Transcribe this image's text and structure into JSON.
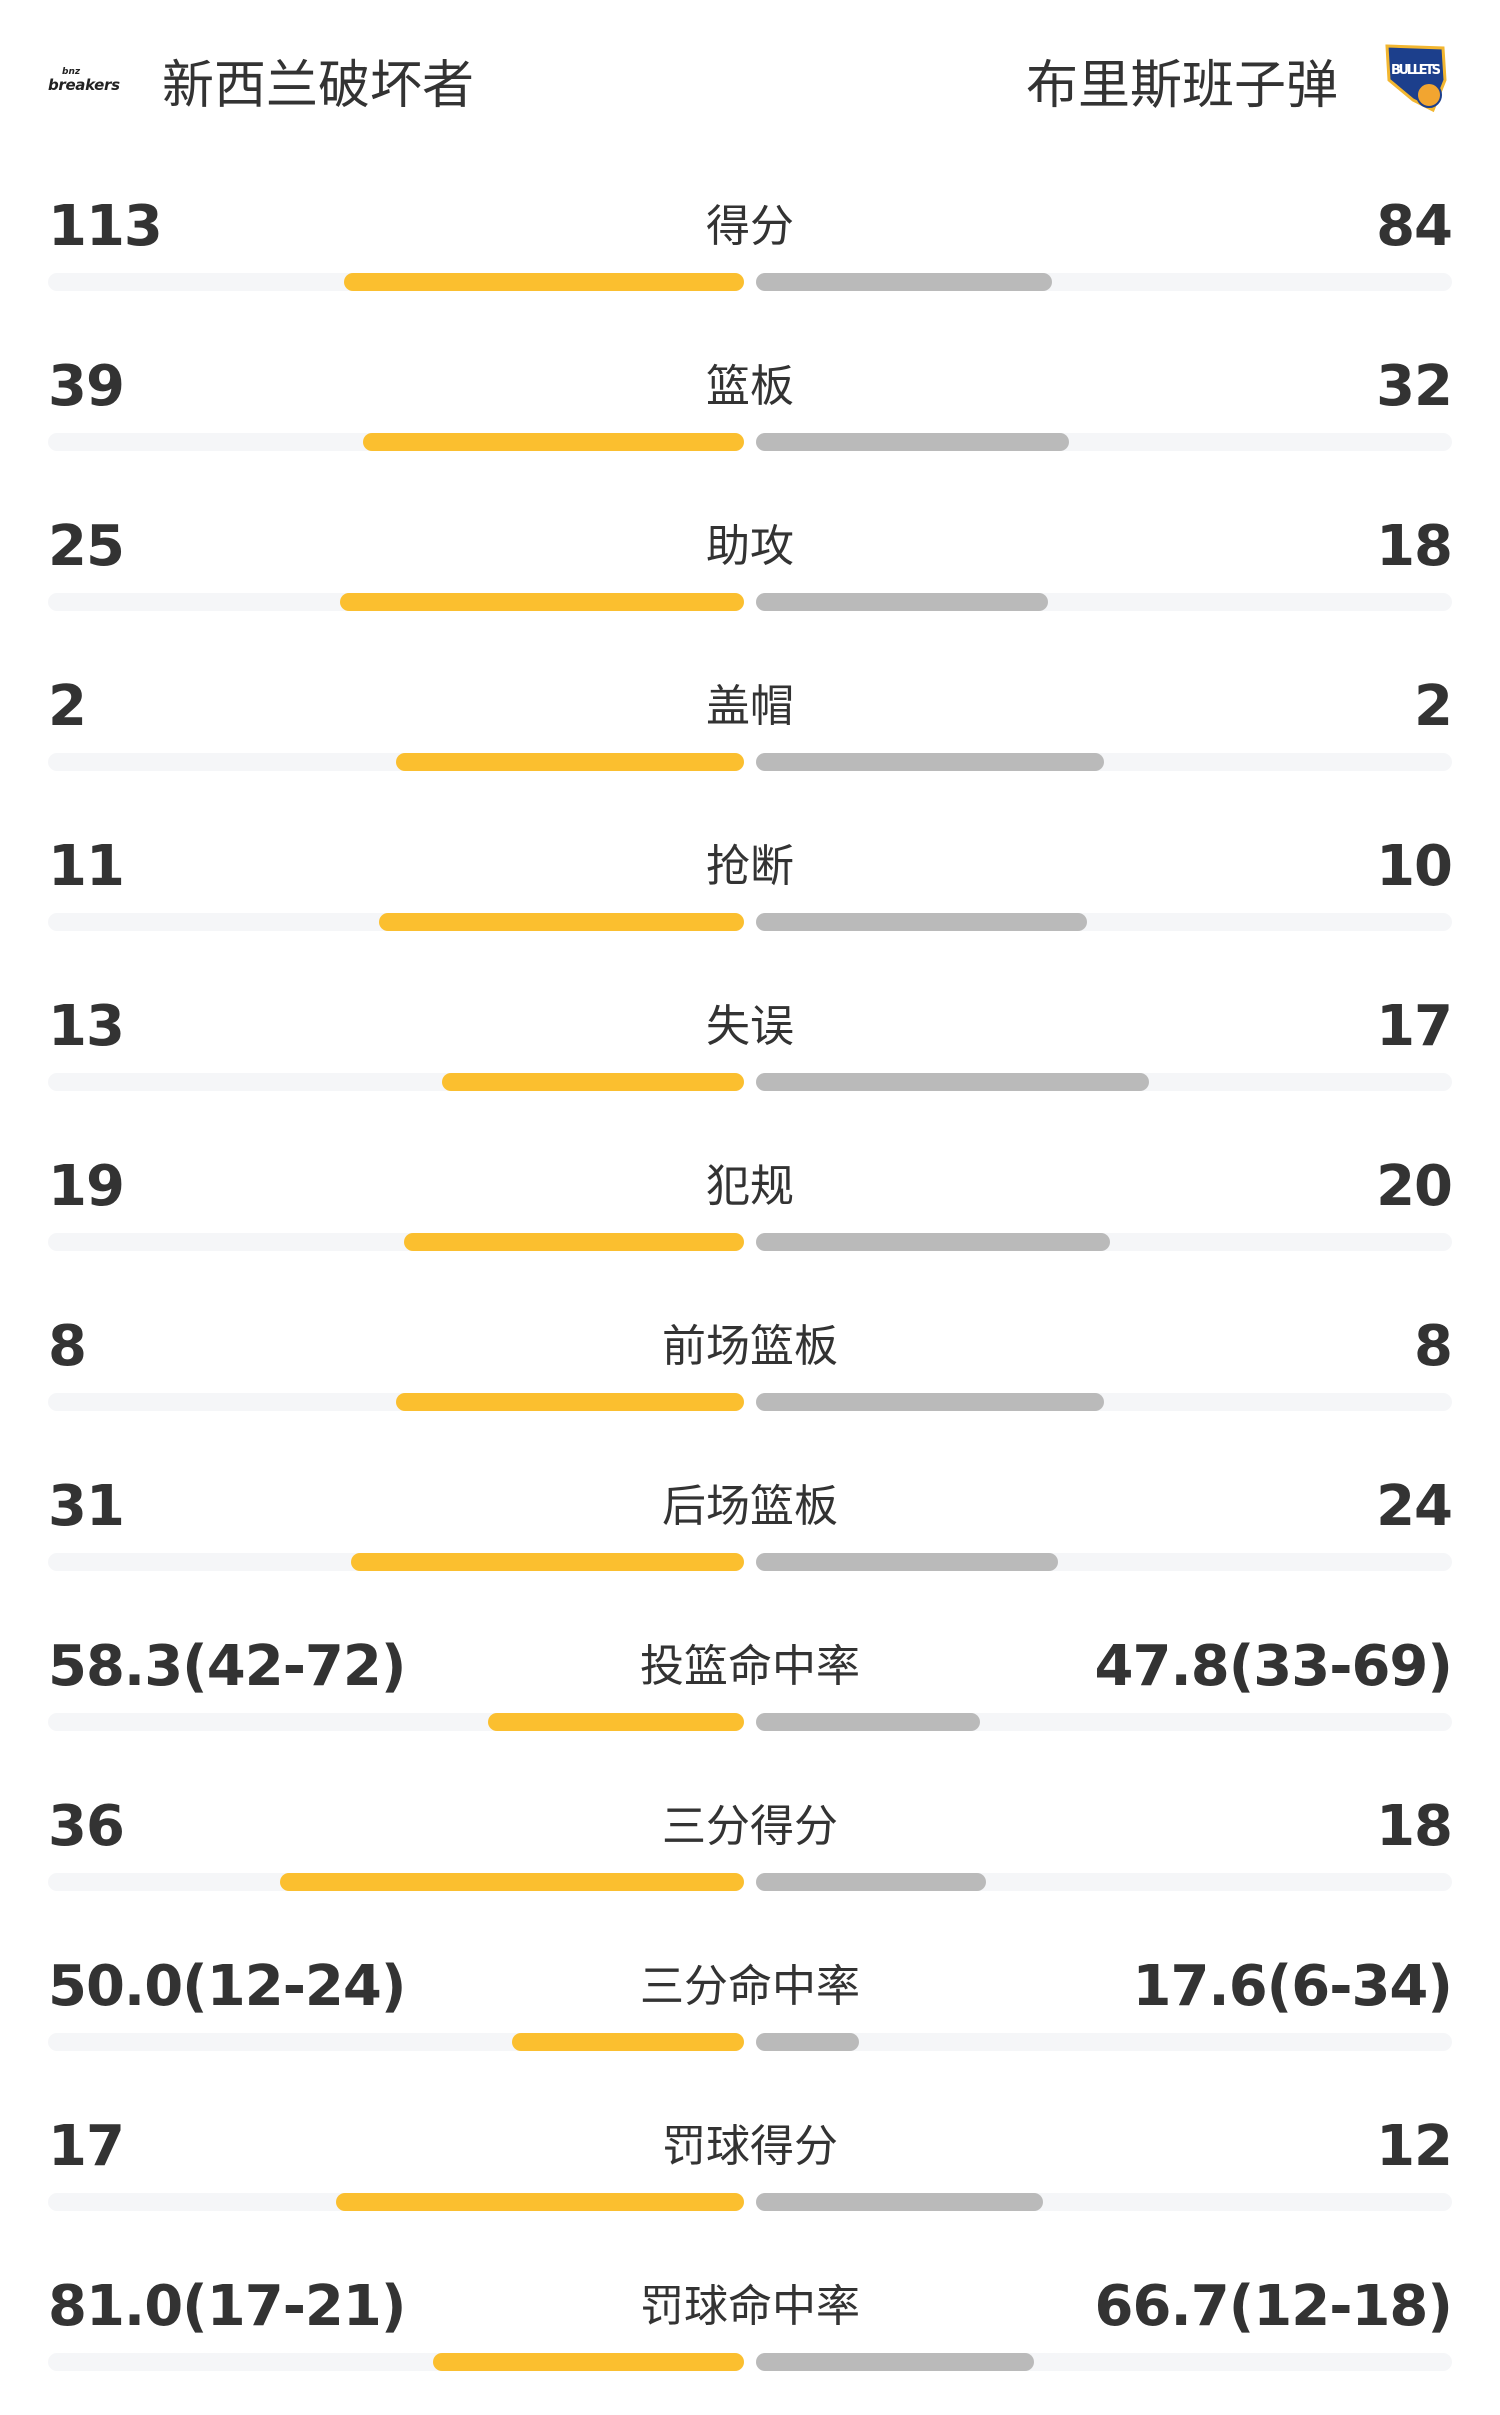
{
  "header": {
    "home_team": {
      "name": "新西兰破坏者",
      "logo_text": "bnz breakers",
      "logo": "breakers-logo"
    },
    "away_team": {
      "name": "布里斯班子弹",
      "logo_text": "BULLETS",
      "logo": "bullets-logo"
    }
  },
  "colors": {
    "home_bar": "#fbbf2f",
    "away_bar": "#bababa",
    "track": "#f5f6f8",
    "text": "#333333"
  },
  "stats": [
    {
      "label": "得分",
      "home": "113",
      "away": "84",
      "home_fill": 0.575,
      "away_fill": 0.425
    },
    {
      "label": "篮板",
      "home": "39",
      "away": "32",
      "home_fill": 0.548,
      "away_fill": 0.449
    },
    {
      "label": "助攻",
      "home": "25",
      "away": "18",
      "home_fill": 0.581,
      "away_fill": 0.419
    },
    {
      "label": "盖帽",
      "home": "2",
      "away": "2",
      "home_fill": 0.5,
      "away_fill": 0.5
    },
    {
      "label": "抢断",
      "home": "11",
      "away": "10",
      "home_fill": 0.524,
      "away_fill": 0.476
    },
    {
      "label": "失误",
      "home": "13",
      "away": "17",
      "home_fill": 0.434,
      "away_fill": 0.564
    },
    {
      "label": "犯规",
      "home": "19",
      "away": "20",
      "home_fill": 0.489,
      "away_fill": 0.509
    },
    {
      "label": "前场篮板",
      "home": "8",
      "away": "8",
      "home_fill": 0.5,
      "away_fill": 0.5
    },
    {
      "label": "后场篮板",
      "home": "31",
      "away": "24",
      "home_fill": 0.564,
      "away_fill": 0.434
    },
    {
      "label": "投篮命中率",
      "home": "58.3(42-72)",
      "away": "47.8(33-69)",
      "home_fill": 0.368,
      "away_fill": 0.322
    },
    {
      "label": "三分得分",
      "home": "36",
      "away": "18",
      "home_fill": 0.667,
      "away_fill": 0.33
    },
    {
      "label": "三分命中率",
      "home": "50.0(12-24)",
      "away": "17.6(6-34)",
      "home_fill": 0.333,
      "away_fill": 0.148
    },
    {
      "label": "罚球得分",
      "home": "17",
      "away": "12",
      "home_fill": 0.586,
      "away_fill": 0.412
    },
    {
      "label": "罚球命中率",
      "home": "81.0(17-21)",
      "away": "66.7(12-18)",
      "home_fill": 0.447,
      "away_fill": 0.399
    }
  ]
}
